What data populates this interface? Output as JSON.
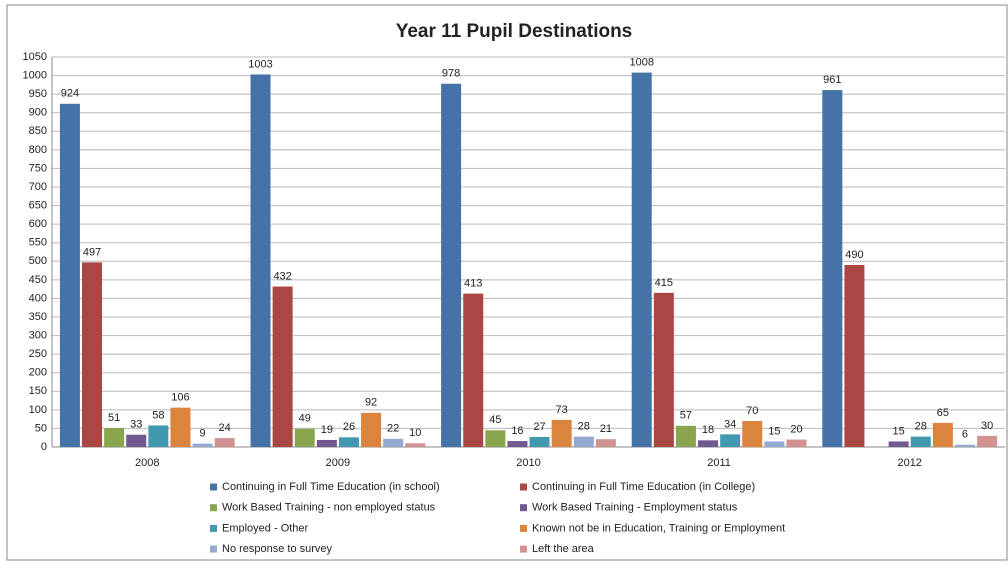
{
  "chart_data": {
    "type": "bar",
    "title": "Year 11  Pupil Destinations",
    "categories": [
      "2008",
      "2009",
      "2010",
      "2011",
      "2012"
    ],
    "series": [
      {
        "name": "Continuing in Full Time Education (in school)",
        "color": "#4572a7",
        "values": [
          924,
          1003,
          978,
          1008,
          961
        ]
      },
      {
        "name": "Continuing in Full Time Education (in College)",
        "color": "#aa4643",
        "values": [
          497,
          432,
          413,
          415,
          490
        ]
      },
      {
        "name": "Work Based Training - non employed status",
        "color": "#89a54e",
        "values": [
          51,
          49,
          45,
          57,
          null
        ]
      },
      {
        "name": "Work Based Training - Employment status",
        "color": "#71588f",
        "values": [
          33,
          19,
          16,
          18,
          15
        ]
      },
      {
        "name": "Employed - Other",
        "color": "#4198af",
        "values": [
          58,
          26,
          27,
          34,
          28
        ]
      },
      {
        "name": "Known not be in Education, Training or Employment",
        "color": "#db843d",
        "values": [
          106,
          92,
          73,
          70,
          65
        ]
      },
      {
        "name": "No response to survey",
        "color": "#93a9cf",
        "values": [
          9,
          22,
          28,
          15,
          6
        ]
      },
      {
        "name": "Left the area",
        "color": "#d19392",
        "values": [
          24,
          10,
          21,
          20,
          30
        ]
      }
    ],
    "ylim": [
      0,
      1050
    ],
    "yticks": [
      0,
      50,
      100,
      150,
      200,
      250,
      300,
      350,
      400,
      450,
      500,
      550,
      600,
      650,
      700,
      750,
      800,
      850,
      900,
      950,
      1000,
      1050
    ],
    "grid": true,
    "legend": "bottom"
  }
}
